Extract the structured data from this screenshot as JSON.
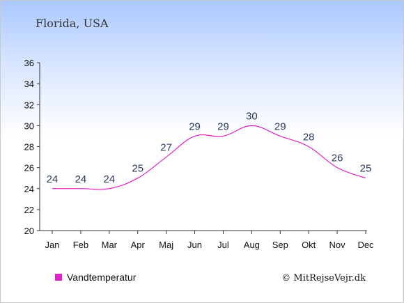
{
  "chart_data": {
    "type": "line",
    "title": "Florida, USA",
    "categories": [
      "Jan",
      "Feb",
      "Mar",
      "Apr",
      "Maj",
      "Jun",
      "Jul",
      "Aug",
      "Sep",
      "Okt",
      "Nov",
      "Dec"
    ],
    "series": [
      {
        "name": "Vandtemperatur",
        "values": [
          24,
          24,
          24,
          25,
          27,
          29,
          29,
          30,
          29,
          28,
          26,
          25
        ],
        "color": "#e020c8"
      }
    ],
    "data_labels": [
      "24",
      "24",
      "24",
      "25",
      "27",
      "29",
      "29",
      "30",
      "29",
      "28",
      "26",
      "25"
    ],
    "y_ticks": [
      "20",
      "22",
      "24",
      "26",
      "28",
      "30",
      "32",
      "34",
      "36"
    ],
    "ylim": [
      20,
      36
    ],
    "xlabel": "",
    "ylabel": "",
    "grid": false,
    "legend_position": "bottom-left",
    "credit": "© MitRejseVejr.dk"
  }
}
